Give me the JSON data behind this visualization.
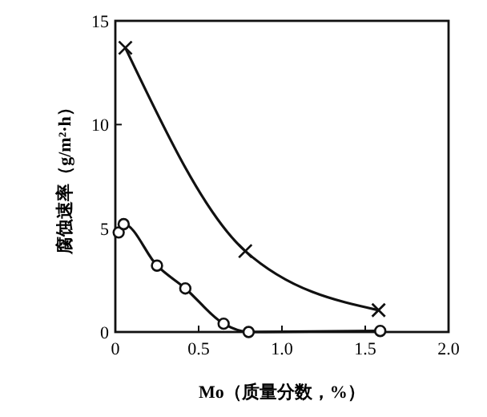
{
  "chart_data": {
    "type": "line",
    "xlabel": "Mo（质量分数，%）",
    "ylabel": "腐蚀速率（g/m²·h）",
    "xlim": [
      0,
      2
    ],
    "ylim": [
      0,
      15
    ],
    "xticks": [
      0,
      {
        "value": 0.5,
        "label": "0.5"
      },
      {
        "value": 1,
        "label": "1.0"
      },
      {
        "value": 1.5,
        "label": "1.5"
      },
      {
        "value": 2,
        "label": "2.0"
      }
    ],
    "yticks": [
      0,
      5,
      10,
      15
    ],
    "grid": false,
    "line_style": "solid",
    "series": [
      {
        "color": "#111111",
        "marker": "cross",
        "x": [
          0.06,
          0.78,
          1.58
        ],
        "values": [
          13.7,
          3.9,
          1.05
        ]
      },
      {
        "color": "#111111",
        "marker": "circle",
        "x": [
          0.02,
          0.05,
          0.25,
          0.42,
          0.65,
          0.8,
          1.59
        ],
        "values": [
          4.8,
          5.2,
          3.2,
          2.1,
          0.4,
          0,
          0.05
        ]
      }
    ]
  }
}
